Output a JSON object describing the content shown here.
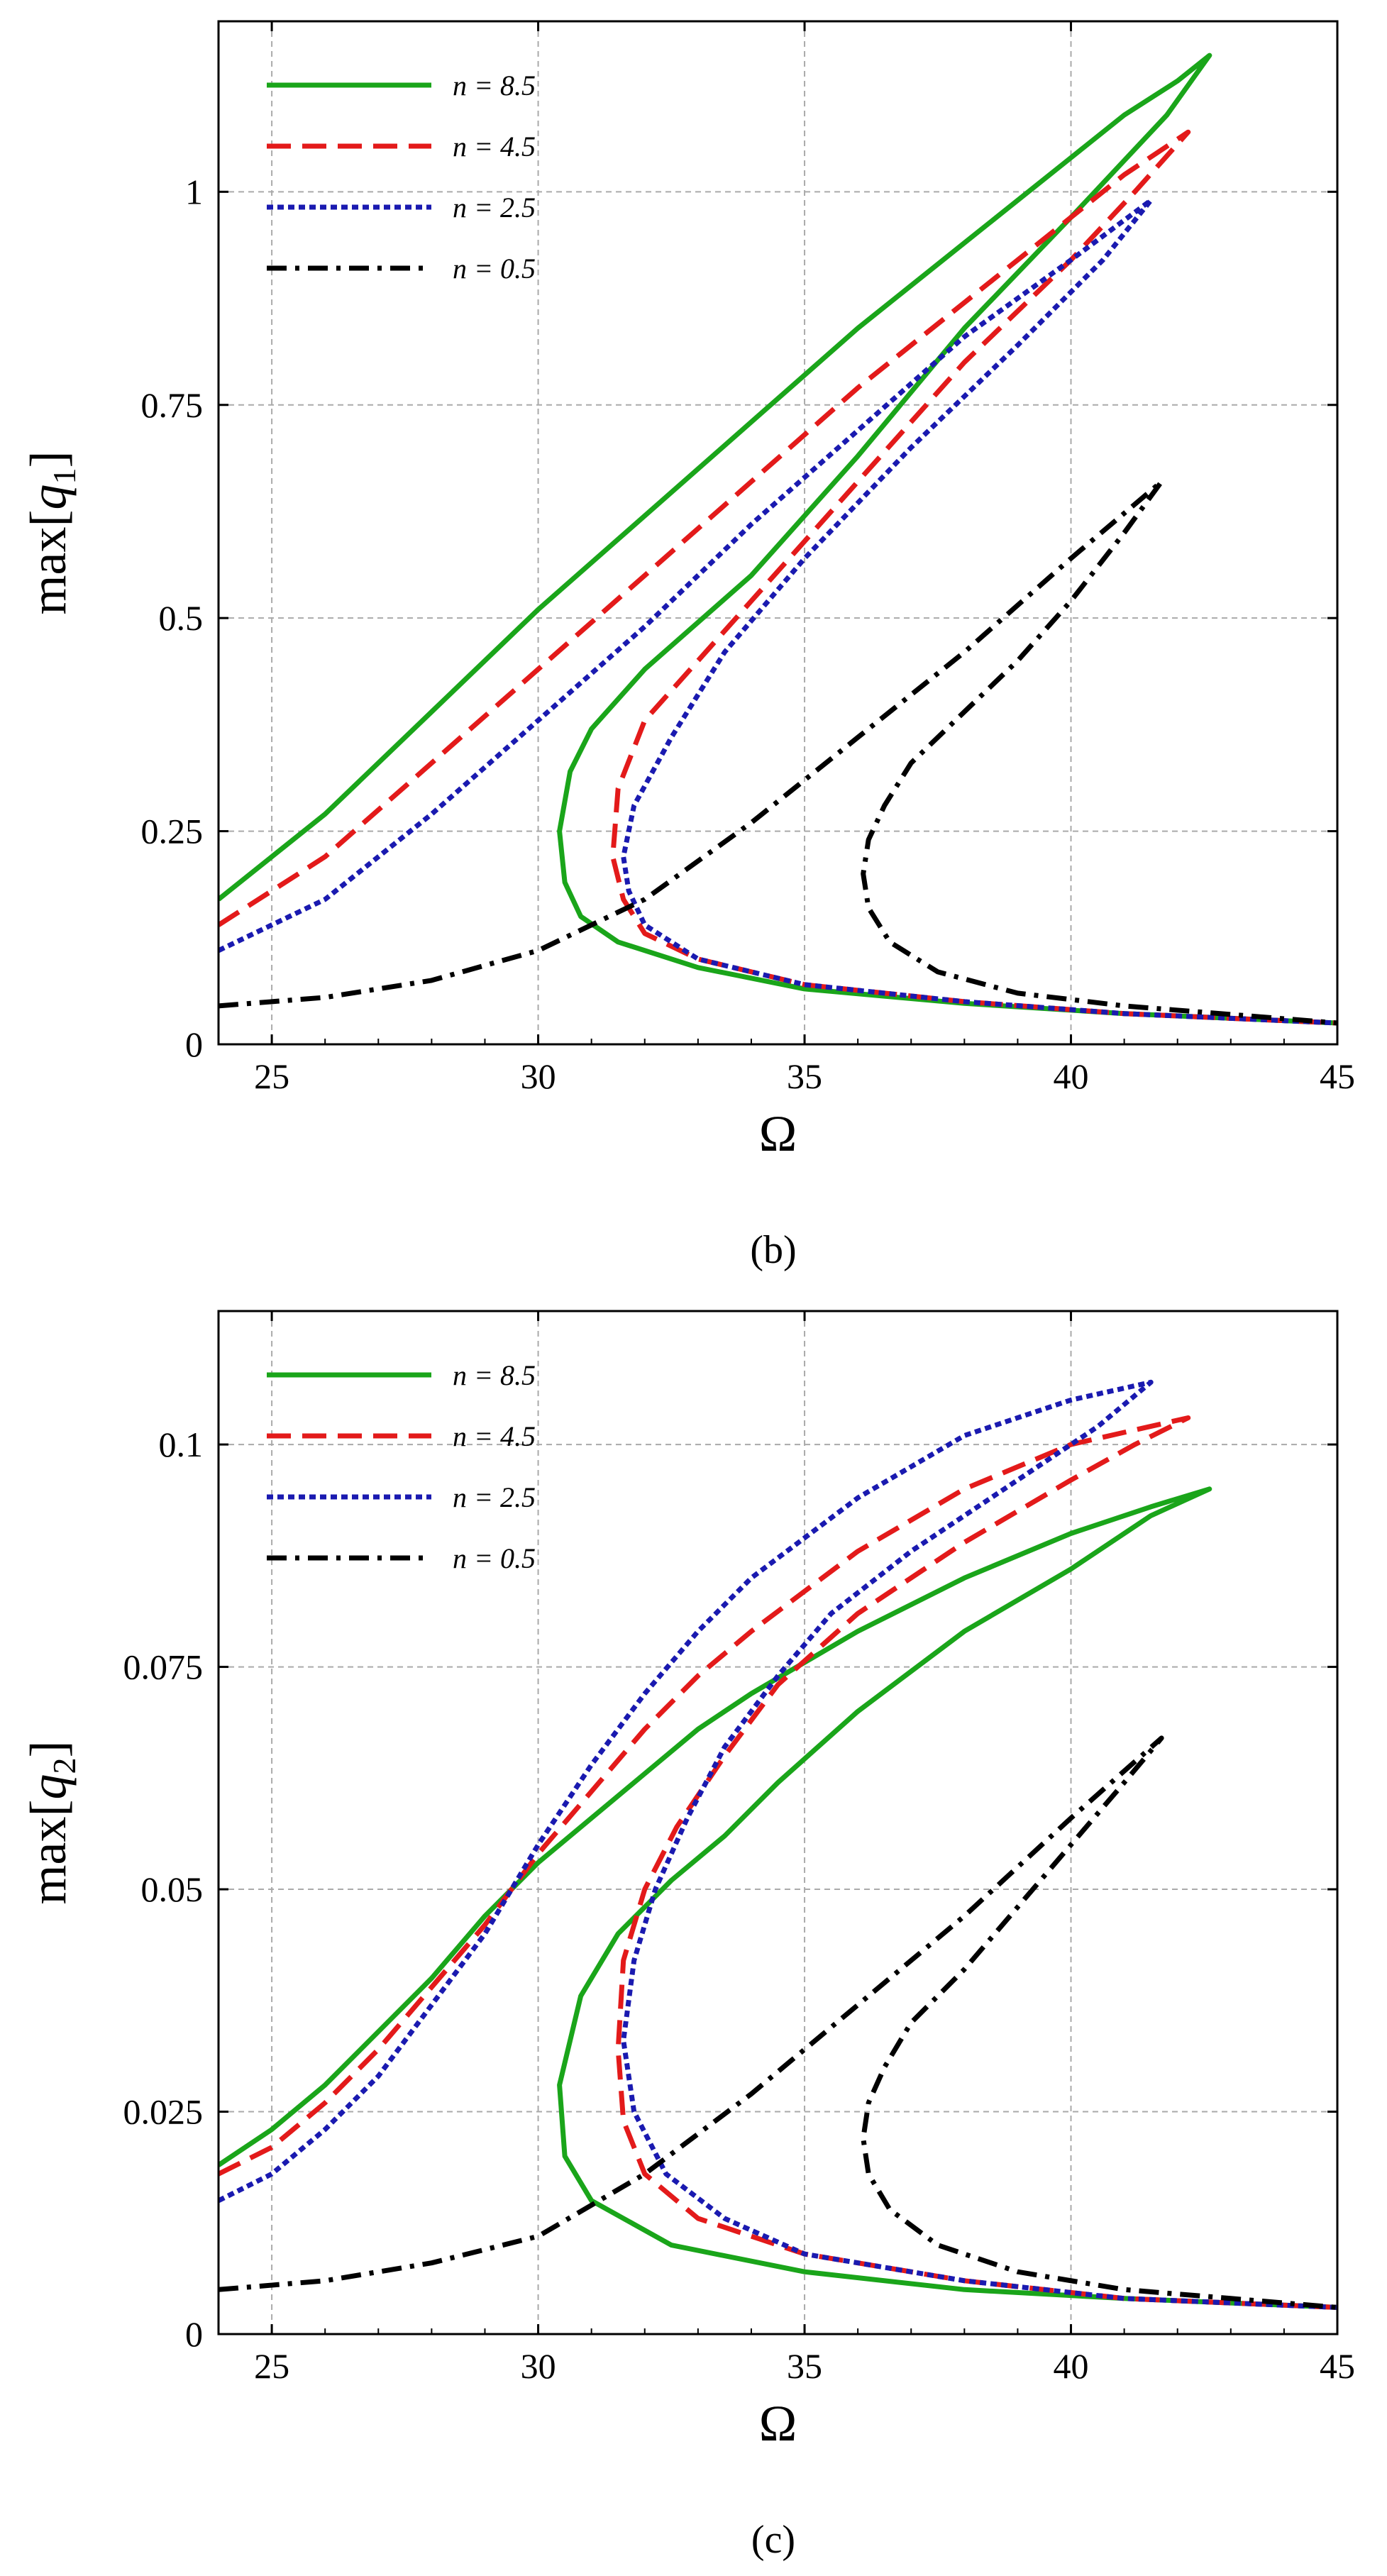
{
  "chart_data": [
    {
      "type": "line",
      "panel": "(b)",
      "xlabel": "Ω",
      "ylabel_prefix": "max[",
      "ylabel_var": "q",
      "ylabel_sub": "1",
      "ylabel_suffix": "]",
      "xlim": [
        24,
        45
      ],
      "ylim": [
        0,
        1.2
      ],
      "xticks": [
        25,
        30,
        35,
        40,
        45
      ],
      "yticks": [
        0,
        0.25,
        0.5,
        0.75,
        1
      ],
      "ytick_labels": [
        "0",
        "0.25",
        "0.5",
        "0.75",
        "1"
      ],
      "grid": true,
      "legend_position": "top-left",
      "series": [
        {
          "name": "n = 8.5",
          "color": "#1aa51a",
          "style": "solid",
          "x": [
            24,
            26,
            28,
            30,
            32,
            34,
            36,
            38,
            40,
            41,
            42,
            42.6,
            41.8,
            40,
            38,
            36,
            34,
            32,
            31,
            30.6,
            30.4,
            30.5,
            30.8,
            31.5,
            33,
            35,
            38,
            41,
            45
          ],
          "y": [
            0.17,
            0.27,
            0.39,
            0.51,
            0.62,
            0.73,
            0.84,
            0.94,
            1.04,
            1.09,
            1.13,
            1.16,
            1.09,
            0.97,
            0.84,
            0.69,
            0.55,
            0.44,
            0.37,
            0.32,
            0.25,
            0.19,
            0.15,
            0.12,
            0.09,
            0.065,
            0.048,
            0.036,
            0.025
          ]
        },
        {
          "name": "n = 4.5",
          "color": "#e31a1a",
          "style": "dashed",
          "x": [
            24,
            26,
            28,
            30,
            32,
            34,
            36,
            38,
            40,
            41,
            42.2,
            41.2,
            40,
            38,
            36,
            34,
            33,
            32,
            31.5,
            31.4,
            31.6,
            32,
            33,
            35,
            38,
            41,
            45
          ],
          "y": [
            0.14,
            0.22,
            0.33,
            0.44,
            0.55,
            0.66,
            0.77,
            0.87,
            0.97,
            1.02,
            1.07,
            1.0,
            0.92,
            0.8,
            0.66,
            0.52,
            0.45,
            0.38,
            0.3,
            0.22,
            0.17,
            0.13,
            0.1,
            0.07,
            0.05,
            0.036,
            0.025
          ]
        },
        {
          "name": "n = 2.5",
          "color": "#1a1ab0",
          "style": "dotted",
          "x": [
            24,
            26,
            28,
            30,
            32,
            34,
            36,
            38,
            40,
            41.5,
            40.6,
            39,
            37,
            35,
            33.5,
            32.5,
            31.8,
            31.6,
            31.7,
            32,
            33,
            35,
            38,
            41,
            45
          ],
          "y": [
            0.11,
            0.17,
            0.27,
            0.38,
            0.49,
            0.61,
            0.72,
            0.83,
            0.92,
            0.99,
            0.92,
            0.82,
            0.7,
            0.57,
            0.46,
            0.36,
            0.28,
            0.22,
            0.18,
            0.14,
            0.1,
            0.07,
            0.05,
            0.036,
            0.025
          ]
        },
        {
          "name": "n = 0.5",
          "color": "#000000",
          "style": "dashdot",
          "x": [
            24,
            26,
            28,
            30,
            32,
            34,
            36,
            38,
            40,
            41.7,
            41,
            40,
            39,
            38,
            37,
            36.5,
            36.2,
            36.1,
            36.2,
            36.6,
            37.5,
            39,
            41,
            43,
            45
          ],
          "y": [
            0.045,
            0.055,
            0.075,
            0.11,
            0.17,
            0.26,
            0.36,
            0.46,
            0.57,
            0.66,
            0.6,
            0.52,
            0.45,
            0.39,
            0.33,
            0.28,
            0.24,
            0.2,
            0.16,
            0.12,
            0.085,
            0.06,
            0.045,
            0.035,
            0.025
          ]
        }
      ]
    },
    {
      "type": "line",
      "panel": "(c)",
      "xlabel": "Ω",
      "ylabel_prefix": "max[",
      "ylabel_var": "q",
      "ylabel_sub": "2",
      "ylabel_suffix": "]",
      "xlim": [
        24,
        45
      ],
      "ylim": [
        0,
        0.115
      ],
      "xticks": [
        25,
        30,
        35,
        40,
        45
      ],
      "yticks": [
        0,
        0.025,
        0.05,
        0.075,
        0.1
      ],
      "ytick_labels": [
        "0",
        "0.025",
        "0.05",
        "0.075",
        "0.1"
      ],
      "grid": true,
      "legend_position": "top-left",
      "series": [
        {
          "name": "n = 8.5",
          "color": "#1aa51a",
          "style": "solid",
          "x": [
            24,
            25,
            26,
            27,
            28,
            29,
            30,
            31,
            32,
            33,
            34,
            36,
            38,
            40,
            41.5,
            42.6,
            41.5,
            40,
            38,
            36,
            34.5,
            33.5,
            32.5,
            31.5,
            30.8,
            30.4,
            30.5,
            31,
            32.5,
            35,
            38,
            41,
            45
          ],
          "y": [
            0.019,
            0.023,
            0.028,
            0.034,
            0.04,
            0.047,
            0.053,
            0.058,
            0.063,
            0.068,
            0.072,
            0.079,
            0.085,
            0.09,
            0.093,
            0.095,
            0.092,
            0.086,
            0.079,
            0.07,
            0.062,
            0.056,
            0.051,
            0.045,
            0.038,
            0.028,
            0.02,
            0.015,
            0.01,
            0.007,
            0.005,
            0.004,
            0.003
          ]
        },
        {
          "name": "n = 4.5",
          "color": "#e31a1a",
          "style": "dashed",
          "x": [
            24,
            25,
            26,
            27,
            28,
            29,
            30,
            31,
            32,
            33,
            34,
            36,
            38,
            40,
            42.2,
            41.2,
            40,
            38,
            36,
            34.5,
            33.5,
            32.6,
            32,
            31.6,
            31.5,
            31.6,
            32,
            33,
            35,
            38,
            41,
            45
          ],
          "y": [
            0.018,
            0.021,
            0.026,
            0.032,
            0.039,
            0.046,
            0.054,
            0.061,
            0.068,
            0.074,
            0.079,
            0.088,
            0.095,
            0.1,
            0.103,
            0.1,
            0.096,
            0.089,
            0.081,
            0.073,
            0.065,
            0.057,
            0.05,
            0.042,
            0.032,
            0.024,
            0.018,
            0.013,
            0.009,
            0.006,
            0.004,
            0.003
          ]
        },
        {
          "name": "n = 2.5",
          "color": "#1a1ab0",
          "style": "dotted",
          "x": [
            24,
            25,
            26,
            27,
            28,
            29,
            30,
            31,
            32,
            33,
            34,
            36,
            38,
            40,
            41.5,
            40.5,
            39,
            37,
            35.5,
            34.5,
            33.5,
            32.8,
            32.2,
            31.8,
            31.6,
            31.8,
            32.4,
            33.5,
            35,
            38,
            41,
            45
          ],
          "y": [
            0.015,
            0.018,
            0.023,
            0.029,
            0.037,
            0.045,
            0.055,
            0.064,
            0.072,
            0.079,
            0.085,
            0.094,
            0.101,
            0.105,
            0.107,
            0.102,
            0.096,
            0.088,
            0.081,
            0.074,
            0.066,
            0.058,
            0.05,
            0.042,
            0.033,
            0.025,
            0.018,
            0.013,
            0.009,
            0.006,
            0.004,
            0.003
          ]
        },
        {
          "name": "n = 0.5",
          "color": "#000000",
          "style": "dashdot",
          "x": [
            24,
            26,
            28,
            30,
            32,
            34,
            36,
            38,
            40,
            41.7,
            41,
            40,
            39,
            38,
            37,
            36.5,
            36.2,
            36.1,
            36.2,
            36.6,
            37.5,
            39,
            41,
            43,
            45
          ],
          "y": [
            0.005,
            0.006,
            0.008,
            0.011,
            0.018,
            0.027,
            0.037,
            0.047,
            0.058,
            0.067,
            0.062,
            0.055,
            0.048,
            0.041,
            0.035,
            0.03,
            0.026,
            0.022,
            0.018,
            0.014,
            0.01,
            0.007,
            0.005,
            0.004,
            0.003
          ]
        }
      ]
    }
  ]
}
